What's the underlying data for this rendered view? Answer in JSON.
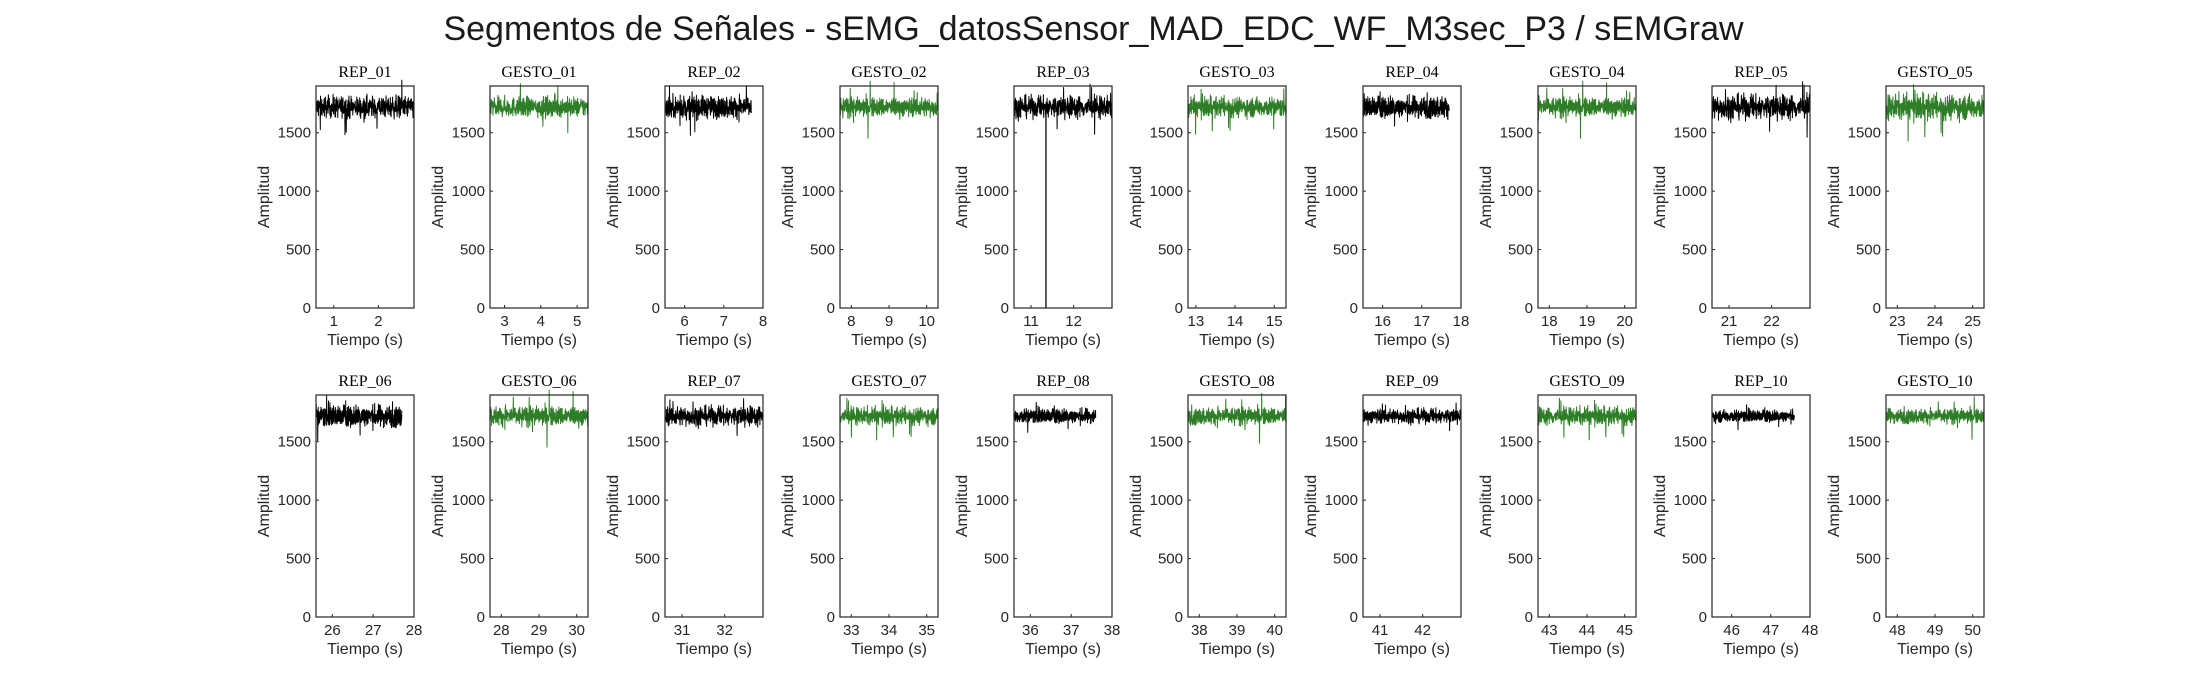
{
  "title": "Segmentos de Señales - sEMG_datosSensor_MAD_EDC_WF_M3sec_P3 / sEMGraw",
  "colors": {
    "rep": "#000000",
    "gesto": "#2e7d27"
  },
  "chart_data": [
    {
      "type": "line",
      "title": "REP_01",
      "xlabel": "Tiempo (s)",
      "ylabel": "Amplitud",
      "xlim": [
        0.6,
        2.8
      ],
      "ylim": [
        0,
        1900
      ],
      "xticks": [
        1,
        2
      ],
      "yticks": [
        0,
        500,
        1000,
        1500
      ],
      "series": [
        {
          "color": "#000000",
          "x_range": [
            0.6,
            2.8
          ],
          "mean": 1720,
          "noise": 45,
          "spikes": []
        }
      ]
    },
    {
      "type": "line",
      "title": "GESTO_01",
      "xlabel": "Tiempo (s)",
      "ylabel": "Amplitud",
      "xlim": [
        2.6,
        5.3
      ],
      "ylim": [
        0,
        1900
      ],
      "xticks": [
        3,
        4,
        5
      ],
      "yticks": [
        0,
        500,
        1000,
        1500
      ],
      "series": [
        {
          "color": "#2e7d27",
          "x_range": [
            2.6,
            5.3
          ],
          "mean": 1720,
          "noise": 40,
          "spikes": []
        }
      ]
    },
    {
      "type": "line",
      "title": "REP_02",
      "xlabel": "Tiempo (s)",
      "ylabel": "Amplitud",
      "xlim": [
        5.5,
        8.0
      ],
      "ylim": [
        0,
        1900
      ],
      "xticks": [
        6,
        7,
        8
      ],
      "yticks": [
        0,
        500,
        1000,
        1500
      ],
      "series": [
        {
          "color": "#000000",
          "x_range": [
            5.5,
            7.7
          ],
          "mean": 1720,
          "noise": 45,
          "spikes": []
        }
      ]
    },
    {
      "type": "line",
      "title": "GESTO_02",
      "xlabel": "Tiempo (s)",
      "ylabel": "Amplitud",
      "xlim": [
        7.7,
        10.3
      ],
      "ylim": [
        0,
        1900
      ],
      "xticks": [
        8,
        9,
        10
      ],
      "yticks": [
        0,
        500,
        1000,
        1500
      ],
      "series": [
        {
          "color": "#2e7d27",
          "x_range": [
            7.7,
            10.3
          ],
          "mean": 1720,
          "noise": 40,
          "spikes": []
        }
      ]
    },
    {
      "type": "line",
      "title": "REP_03",
      "xlabel": "Tiempo (s)",
      "ylabel": "Amplitud",
      "xlim": [
        10.6,
        12.9
      ],
      "ylim": [
        0,
        1900
      ],
      "xticks": [
        11,
        12
      ],
      "yticks": [
        0,
        500,
        1000,
        1500
      ],
      "series": [
        {
          "color": "#000000",
          "x_range": [
            10.6,
            12.9
          ],
          "mean": 1720,
          "noise": 45,
          "spikes": [
            {
              "x": 11.35,
              "y": 0
            }
          ]
        }
      ]
    },
    {
      "type": "line",
      "title": "GESTO_03",
      "xlabel": "Tiempo (s)",
      "ylabel": "Amplitud",
      "xlim": [
        12.8,
        15.3
      ],
      "ylim": [
        0,
        1900
      ],
      "xticks": [
        13,
        14,
        15
      ],
      "yticks": [
        0,
        500,
        1000,
        1500
      ],
      "series": [
        {
          "color": "#2e7d27",
          "x_range": [
            12.8,
            15.3
          ],
          "mean": 1720,
          "noise": 40,
          "spikes": []
        }
      ]
    },
    {
      "type": "line",
      "title": "REP_04",
      "xlabel": "Tiempo (s)",
      "ylabel": "Amplitud",
      "xlim": [
        15.5,
        18.0
      ],
      "ylim": [
        0,
        1900
      ],
      "xticks": [
        16,
        17,
        18
      ],
      "yticks": [
        0,
        500,
        1000,
        1500
      ],
      "series": [
        {
          "color": "#000000",
          "x_range": [
            15.5,
            17.7
          ],
          "mean": 1720,
          "noise": 45,
          "spikes": []
        }
      ]
    },
    {
      "type": "line",
      "title": "GESTO_04",
      "xlabel": "Tiempo (s)",
      "ylabel": "Amplitud",
      "xlim": [
        17.7,
        20.3
      ],
      "ylim": [
        0,
        1900
      ],
      "xticks": [
        18,
        19,
        20
      ],
      "yticks": [
        0,
        500,
        1000,
        1500
      ],
      "series": [
        {
          "color": "#2e7d27",
          "x_range": [
            17.7,
            20.3
          ],
          "mean": 1720,
          "noise": 40,
          "spikes": []
        }
      ]
    },
    {
      "type": "line",
      "title": "REP_05",
      "xlabel": "Tiempo (s)",
      "ylabel": "Amplitud",
      "xlim": [
        20.6,
        22.9
      ],
      "ylim": [
        0,
        1900
      ],
      "xticks": [
        21,
        22
      ],
      "yticks": [
        0,
        500,
        1000,
        1500
      ],
      "series": [
        {
          "color": "#000000",
          "x_range": [
            20.6,
            22.9
          ],
          "mean": 1720,
          "noise": 50,
          "spikes": []
        }
      ]
    },
    {
      "type": "line",
      "title": "GESTO_05",
      "xlabel": "Tiempo (s)",
      "ylabel": "Amplitud",
      "xlim": [
        22.7,
        25.3
      ],
      "ylim": [
        0,
        1900
      ],
      "xticks": [
        23,
        24,
        25
      ],
      "yticks": [
        0,
        500,
        1000,
        1500
      ],
      "series": [
        {
          "color": "#2e7d27",
          "x_range": [
            22.7,
            25.3
          ],
          "mean": 1720,
          "noise": 50,
          "spikes": []
        }
      ]
    },
    {
      "type": "line",
      "title": "REP_06",
      "xlabel": "Tiempo (s)",
      "ylabel": "Amplitud",
      "xlim": [
        25.6,
        28.0
      ],
      "ylim": [
        0,
        1900
      ],
      "xticks": [
        26,
        27,
        28
      ],
      "yticks": [
        0,
        500,
        1000,
        1500
      ],
      "series": [
        {
          "color": "#000000",
          "x_range": [
            25.6,
            27.7
          ],
          "mean": 1720,
          "noise": 45,
          "spikes": []
        }
      ]
    },
    {
      "type": "line",
      "title": "GESTO_06",
      "xlabel": "Tiempo (s)",
      "ylabel": "Amplitud",
      "xlim": [
        27.7,
        30.3
      ],
      "ylim": [
        0,
        1900
      ],
      "xticks": [
        28,
        29,
        30
      ],
      "yticks": [
        0,
        500,
        1000,
        1500
      ],
      "series": [
        {
          "color": "#2e7d27",
          "x_range": [
            27.7,
            30.3
          ],
          "mean": 1720,
          "noise": 40,
          "spikes": []
        }
      ]
    },
    {
      "type": "line",
      "title": "REP_07",
      "xlabel": "Tiempo (s)",
      "ylabel": "Amplitud",
      "xlim": [
        30.6,
        32.9
      ],
      "ylim": [
        0,
        1900
      ],
      "xticks": [
        31,
        32
      ],
      "yticks": [
        0,
        500,
        1000,
        1500
      ],
      "series": [
        {
          "color": "#000000",
          "x_range": [
            30.6,
            32.9
          ],
          "mean": 1720,
          "noise": 40,
          "spikes": []
        }
      ]
    },
    {
      "type": "line",
      "title": "GESTO_07",
      "xlabel": "Tiempo (s)",
      "ylabel": "Amplitud",
      "xlim": [
        32.7,
        35.3
      ],
      "ylim": [
        0,
        1900
      ],
      "xticks": [
        33,
        34,
        35
      ],
      "yticks": [
        0,
        500,
        1000,
        1500
      ],
      "series": [
        {
          "color": "#2e7d27",
          "x_range": [
            32.7,
            35.3
          ],
          "mean": 1720,
          "noise": 35,
          "spikes": []
        }
      ]
    },
    {
      "type": "line",
      "title": "REP_08",
      "xlabel": "Tiempo (s)",
      "ylabel": "Amplitud",
      "xlim": [
        35.6,
        38.0
      ],
      "ylim": [
        0,
        1900
      ],
      "xticks": [
        36,
        37,
        38
      ],
      "yticks": [
        0,
        500,
        1000,
        1500
      ],
      "series": [
        {
          "color": "#000000",
          "x_range": [
            35.6,
            37.6
          ],
          "mean": 1720,
          "noise": 30,
          "spikes": []
        }
      ]
    },
    {
      "type": "line",
      "title": "GESTO_08",
      "xlabel": "Tiempo (s)",
      "ylabel": "Amplitud",
      "xlim": [
        37.7,
        40.3
      ],
      "ylim": [
        0,
        1900
      ],
      "xticks": [
        38,
        39,
        40
      ],
      "yticks": [
        0,
        500,
        1000,
        1500
      ],
      "series": [
        {
          "color": "#2e7d27",
          "x_range": [
            37.7,
            40.3
          ],
          "mean": 1720,
          "noise": 35,
          "spikes": []
        }
      ]
    },
    {
      "type": "line",
      "title": "REP_09",
      "xlabel": "Tiempo (s)",
      "ylabel": "Amplitud",
      "xlim": [
        40.6,
        42.9
      ],
      "ylim": [
        0,
        1900
      ],
      "xticks": [
        41,
        42
      ],
      "yticks": [
        0,
        500,
        1000,
        1500
      ],
      "series": [
        {
          "color": "#000000",
          "x_range": [
            40.6,
            42.9
          ],
          "mean": 1720,
          "noise": 30,
          "spikes": []
        }
      ]
    },
    {
      "type": "line",
      "title": "GESTO_09",
      "xlabel": "Tiempo (s)",
      "ylabel": "Amplitud",
      "xlim": [
        42.7,
        45.3
      ],
      "ylim": [
        0,
        1900
      ],
      "xticks": [
        43,
        44,
        45
      ],
      "yticks": [
        0,
        500,
        1000,
        1500
      ],
      "series": [
        {
          "color": "#2e7d27",
          "x_range": [
            42.7,
            45.3
          ],
          "mean": 1720,
          "noise": 35,
          "spikes": []
        }
      ]
    },
    {
      "type": "line",
      "title": "REP_10",
      "xlabel": "Tiempo (s)",
      "ylabel": "Amplitud",
      "xlim": [
        45.5,
        48.0
      ],
      "ylim": [
        0,
        1900
      ],
      "xticks": [
        46,
        47,
        48
      ],
      "yticks": [
        0,
        500,
        1000,
        1500
      ],
      "series": [
        {
          "color": "#000000",
          "x_range": [
            45.5,
            47.6
          ],
          "mean": 1720,
          "noise": 25,
          "spikes": []
        }
      ]
    },
    {
      "type": "line",
      "title": "GESTO_10",
      "xlabel": "Tiempo (s)",
      "ylabel": "Amplitud",
      "xlim": [
        47.7,
        50.3
      ],
      "ylim": [
        0,
        1900
      ],
      "xticks": [
        48,
        49,
        50
      ],
      "yticks": [
        0,
        500,
        1000,
        1500
      ],
      "series": [
        {
          "color": "#2e7d27",
          "x_range": [
            47.7,
            50.3
          ],
          "mean": 1720,
          "noise": 30,
          "spikes": []
        }
      ]
    }
  ]
}
